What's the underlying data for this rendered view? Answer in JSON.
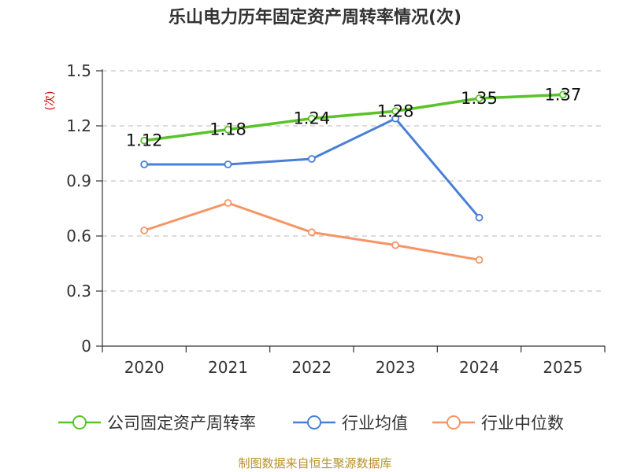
{
  "chart_data": {
    "type": "line",
    "title": "乐山电力历年固定资产周转率情况(次)",
    "ylabel": "(次)",
    "xlabel": "",
    "categories": [
      "2020",
      "2021",
      "2022",
      "2023",
      "2024",
      "2025"
    ],
    "ylim": [
      0,
      1.5
    ],
    "yticks": [
      "0",
      "0.3",
      "0.6",
      "0.9",
      "1.2",
      "1.5"
    ],
    "grid": "horizontal-dashed",
    "legend_position": "bottom",
    "series": [
      {
        "name": "公司固定资产周转率",
        "color": "#5bc22a",
        "values": [
          1.12,
          1.18,
          1.24,
          1.28,
          1.35,
          1.37
        ],
        "labels": [
          "1.12",
          "1.18",
          "1.24",
          "1.28",
          "1.35",
          "1.37"
        ]
      },
      {
        "name": "行业均值",
        "color": "#4a7fd8",
        "values": [
          0.99,
          0.99,
          1.02,
          1.24,
          0.7,
          null
        ]
      },
      {
        "name": "行业中位数",
        "color": "#f59566",
        "values": [
          0.63,
          0.78,
          0.62,
          0.55,
          0.47,
          null
        ]
      }
    ]
  },
  "source": "制图数据来自恒生聚源数据库"
}
